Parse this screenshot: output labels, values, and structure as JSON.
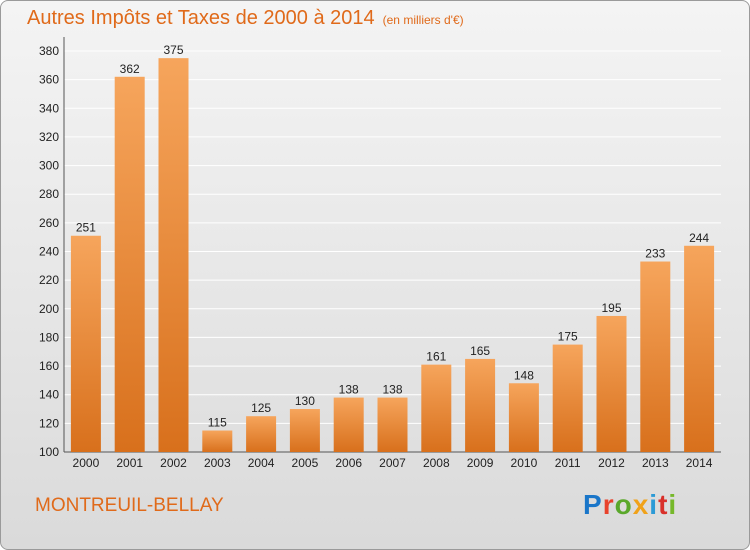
{
  "header": {
    "title": "Autres Impôts et Taxes de 2000 à 2014",
    "unit": "(en milliers d'€)"
  },
  "footer": {
    "commune": "MONTREUIL-BELLAY",
    "brand_letters": [
      "P",
      "r",
      "o",
      "x",
      "i",
      "t",
      "i"
    ],
    "brand_colors": [
      "#1a76c9",
      "#e8422c",
      "#5aa82b",
      "#f0a21a",
      "#2b9ad6",
      "#d9302a",
      "#76b82a"
    ]
  },
  "colors": {
    "bar_top": "#f6a55c",
    "bar_bottom": "#d8701c",
    "title": "#e06a1a",
    "grid": "#ffffff"
  },
  "chart_data": {
    "type": "bar",
    "title": "Autres Impôts et Taxes de 2000 à 2014",
    "xlabel": "",
    "ylabel": "",
    "categories": [
      "2000",
      "2001",
      "2002",
      "2003",
      "2004",
      "2005",
      "2006",
      "2007",
      "2008",
      "2009",
      "2010",
      "2011",
      "2012",
      "2013",
      "2014"
    ],
    "values": [
      251,
      362,
      375,
      115,
      125,
      130,
      138,
      138,
      161,
      165,
      148,
      175,
      195,
      233,
      244
    ],
    "ylim": [
      100,
      380
    ],
    "yticks": [
      100,
      120,
      140,
      160,
      180,
      200,
      220,
      240,
      260,
      280,
      300,
      320,
      340,
      360,
      380
    ],
    "grid": true
  }
}
